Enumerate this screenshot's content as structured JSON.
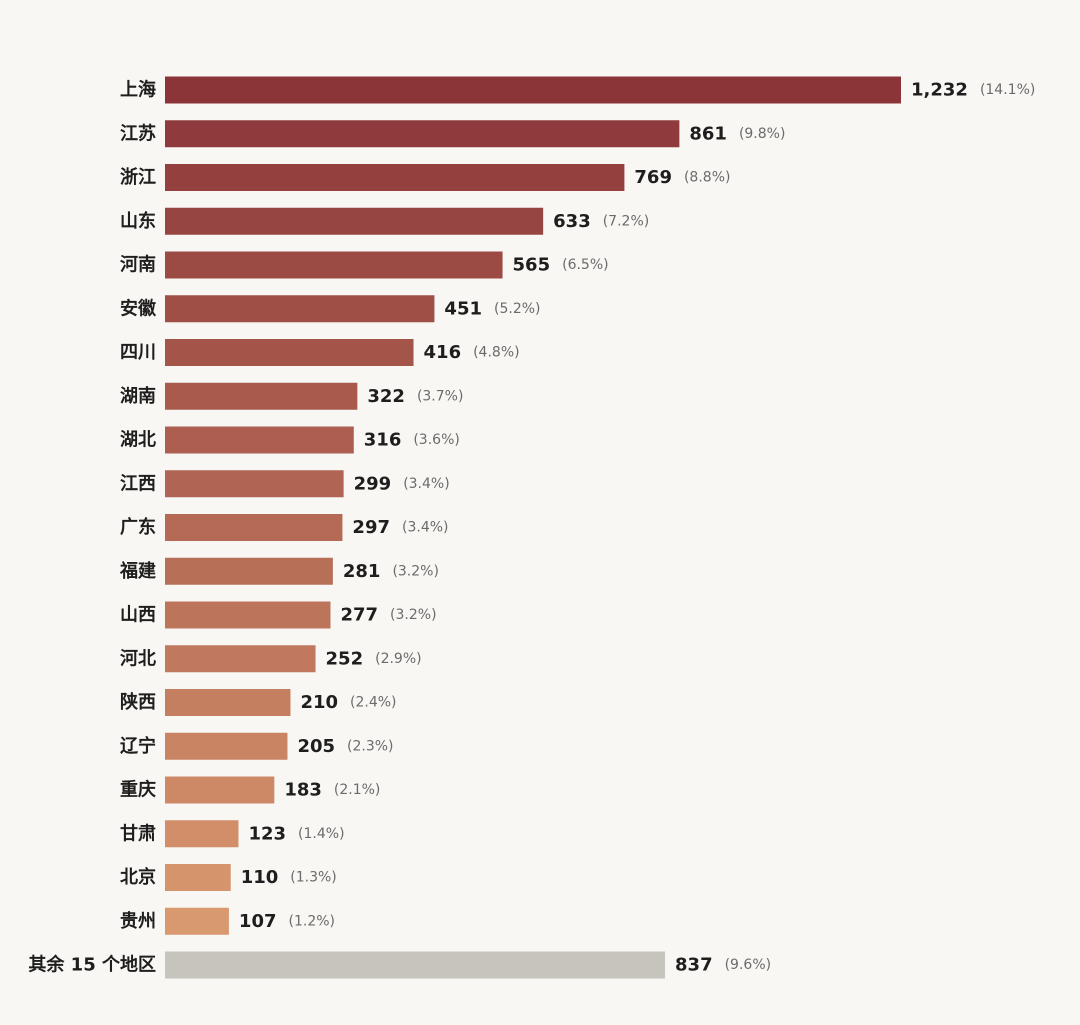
{
  "chart_data": {
    "type": "bar",
    "orientation": "horizontal",
    "categories": [
      "上海",
      "江苏",
      "浙江",
      "山东",
      "河南",
      "安徽",
      "四川",
      "湖南",
      "湖北",
      "江西",
      "广东",
      "福建",
      "山西",
      "河北",
      "陕西",
      "辽宁",
      "重庆",
      "甘肃",
      "北京",
      "贵州",
      "其余 15 个地区"
    ],
    "values": [
      1232,
      861,
      769,
      633,
      565,
      451,
      416,
      322,
      316,
      299,
      297,
      281,
      277,
      252,
      210,
      205,
      183,
      123,
      110,
      107,
      837
    ],
    "value_labels": [
      "1,232",
      "861",
      "769",
      "633",
      "565",
      "451",
      "416",
      "322",
      "316",
      "299",
      "297",
      "281",
      "277",
      "252",
      "210",
      "205",
      "183",
      "123",
      "110",
      "107",
      "837"
    ],
    "percent_labels": [
      "(14.1%)",
      "(9.8%)",
      "(8.8%)",
      "(7.2%)",
      "(6.5%)",
      "(5.2%)",
      "(4.8%)",
      "(3.7%)",
      "(3.6%)",
      "(3.4%)",
      "(3.4%)",
      "(3.2%)",
      "(3.2%)",
      "(2.9%)",
      "(2.4%)",
      "(2.3%)",
      "(2.1%)",
      "(1.4%)",
      "(1.3%)",
      "(1.2%)",
      "(9.6%)"
    ],
    "title": "",
    "xlabel": "",
    "ylabel": "",
    "xlim": [
      0,
      1232
    ],
    "grid": false,
    "legend": "none",
    "colors": {
      "gradient_start": "#8b3539",
      "gradient_end": "#d9996f",
      "other_bar": "#c7c3bd",
      "background": "#f9f7f4"
    }
  }
}
